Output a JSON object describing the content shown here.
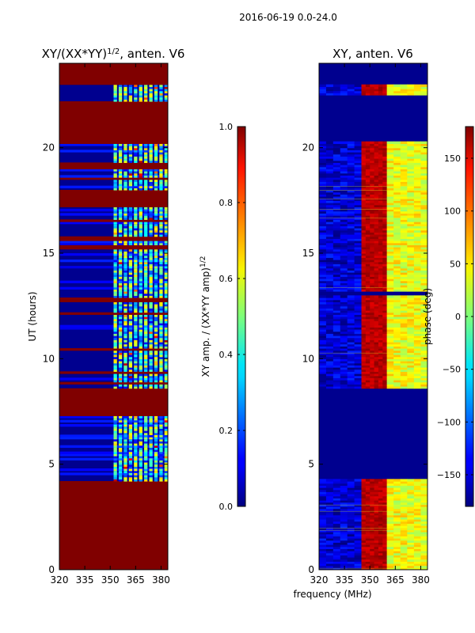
{
  "chart_data": [
    {
      "type": "heatmap",
      "title_main": "XY/(XX*YY)",
      "title_exp": "1/2",
      "title_suffix": ", anten. V6",
      "xlabel": "",
      "ylabel": "UT (hours)",
      "xlim": [
        320,
        384
      ],
      "ylim": [
        0,
        24
      ],
      "xticks": [
        320,
        335,
        350,
        365,
        380
      ],
      "yticks": [
        0,
        5,
        10,
        15,
        20
      ],
      "colorbar": {
        "label_main": "XY amp. / (XX*YY amp)",
        "label_exp": "1/2",
        "range": [
          0,
          1
        ],
        "ticks": [
          "0.0",
          "0.2",
          "0.4",
          "0.6",
          "0.8",
          "1.0"
        ],
        "tick_values": [
          0,
          0.2,
          0.4,
          0.6,
          0.8,
          1.0
        ]
      },
      "flagged_value": 1.0,
      "background_value": 0.05,
      "flagged_intervals_hours": [
        [
          0.0,
          4.2
        ],
        [
          7.3,
          8.6
        ],
        [
          12.7,
          12.9
        ],
        [
          15.2,
          15.4
        ],
        [
          17.2,
          18.0
        ],
        [
          19.0,
          19.3
        ],
        [
          20.2,
          22.2
        ],
        [
          23.0,
          24.0
        ]
      ],
      "signal_band_mhz": [
        352,
        384
      ],
      "channel_columns_mhz": [
        353,
        356,
        359,
        362,
        365,
        368,
        371,
        374,
        377,
        380,
        383
      ]
    },
    {
      "type": "heatmap",
      "title": "XY, anten. V6",
      "xlabel": "frequency (MHz)",
      "ylabel": "",
      "xlim": [
        320,
        384
      ],
      "ylim": [
        0,
        24
      ],
      "xticks": [
        320,
        335,
        350,
        365,
        380
      ],
      "yticks": [
        0,
        5,
        10,
        15,
        20
      ],
      "colorbar": {
        "label": "phase (deg)",
        "range": [
          -180,
          180
        ],
        "ticks": [
          "−150",
          "−100",
          "−50",
          "0",
          "50",
          "100",
          "150"
        ],
        "tick_values": [
          -150,
          -100,
          -50,
          0,
          50,
          100,
          150
        ]
      },
      "phase_regions_deg": [
        {
          "band_mhz": [
            320,
            345
          ],
          "value": -150
        },
        {
          "band_mhz": [
            345,
            360
          ],
          "value": 160
        },
        {
          "band_mhz": [
            360,
            384
          ],
          "value": 40
        }
      ],
      "flagged_intervals_hours": [
        [
          4.3,
          8.6
        ],
        [
          13.0,
          13.2
        ],
        [
          20.3,
          22.5
        ],
        [
          23.0,
          24.0
        ]
      ]
    }
  ],
  "header": {
    "suptitle": "2016-06-19 0.0-24.0"
  }
}
